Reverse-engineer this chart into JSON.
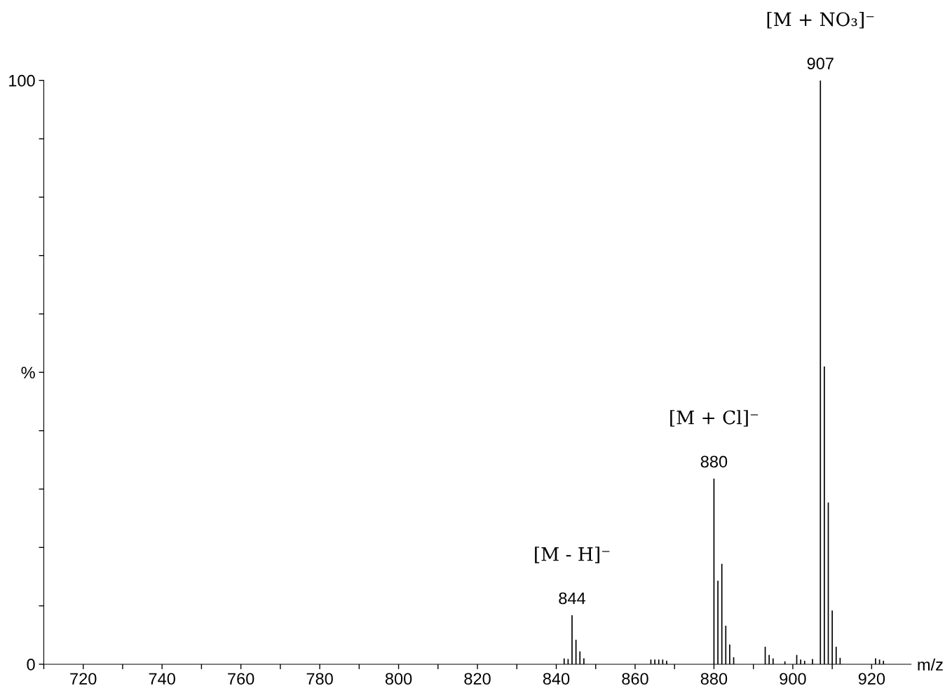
{
  "chart_data": {
    "type": "bar",
    "x": [
      842,
      843,
      844,
      845,
      846,
      847,
      864,
      865,
      866,
      867,
      868,
      880,
      881,
      882,
      883,
      884,
      885,
      893,
      894,
      895,
      898,
      901,
      902,
      903,
      905,
      907,
      908,
      909,
      910,
      911,
      912,
      921,
      922,
      923
    ],
    "values": [
      1.0,
      0.9,
      8.4,
      4.2,
      2.2,
      1.0,
      0.8,
      0.8,
      0.8,
      0.8,
      0.6,
      31.8,
      14.3,
      17.2,
      6.6,
      3.4,
      1.2,
      3.0,
      1.6,
      1.0,
      0.5,
      1.6,
      0.8,
      0.6,
      0.9,
      100,
      51.0,
      27.7,
      9.2,
      3.0,
      1.1,
      1.0,
      0.8,
      0.6
    ],
    "color": "#000000",
    "xlabel": "m/z",
    "ylabel": "%",
    "xlim": [
      710,
      930
    ],
    "xticks": [
      {
        "value": 710,
        "label": null
      },
      720,
      {
        "value": 730,
        "label": null
      },
      740,
      {
        "value": 750,
        "label": null
      },
      760,
      {
        "value": 770,
        "label": null
      },
      780,
      {
        "value": 790,
        "label": null
      },
      800,
      {
        "value": 810,
        "label": null
      },
      820,
      {
        "value": 830,
        "label": null
      },
      840,
      {
        "value": 850,
        "label": null
      },
      860,
      {
        "value": 870,
        "label": null
      },
      880,
      {
        "value": 890,
        "label": null
      },
      900,
      {
        "value": 910,
        "label": null
      },
      920
    ],
    "ylim": [
      0,
      100
    ],
    "yticks": [
      0,
      {
        "value": 10,
        "label": null
      },
      {
        "value": 20,
        "label": null
      },
      {
        "value": 30,
        "label": null
      },
      {
        "value": 40,
        "label": null
      },
      {
        "value": 50,
        "label": "%"
      },
      {
        "value": 60,
        "label": null
      },
      {
        "value": 70,
        "label": null
      },
      {
        "value": 80,
        "label": null
      },
      {
        "value": 90,
        "label": null
      },
      100
    ],
    "annotations": [
      {
        "text": "844",
        "x": 844,
        "y": 8.4
      },
      {
        "text": "[M - H]⁻",
        "x": 844,
        "y": 8.4
      },
      {
        "text": "880",
        "x": 880,
        "y": 31.8
      },
      {
        "text": "[M + Cl]⁻",
        "x": 880,
        "y": 31.8
      },
      {
        "text": "907",
        "x": 907,
        "y": 100
      },
      {
        "text": "[M + NO₃]⁻",
        "x": 907,
        "y": 100
      }
    ],
    "grid": false
  }
}
